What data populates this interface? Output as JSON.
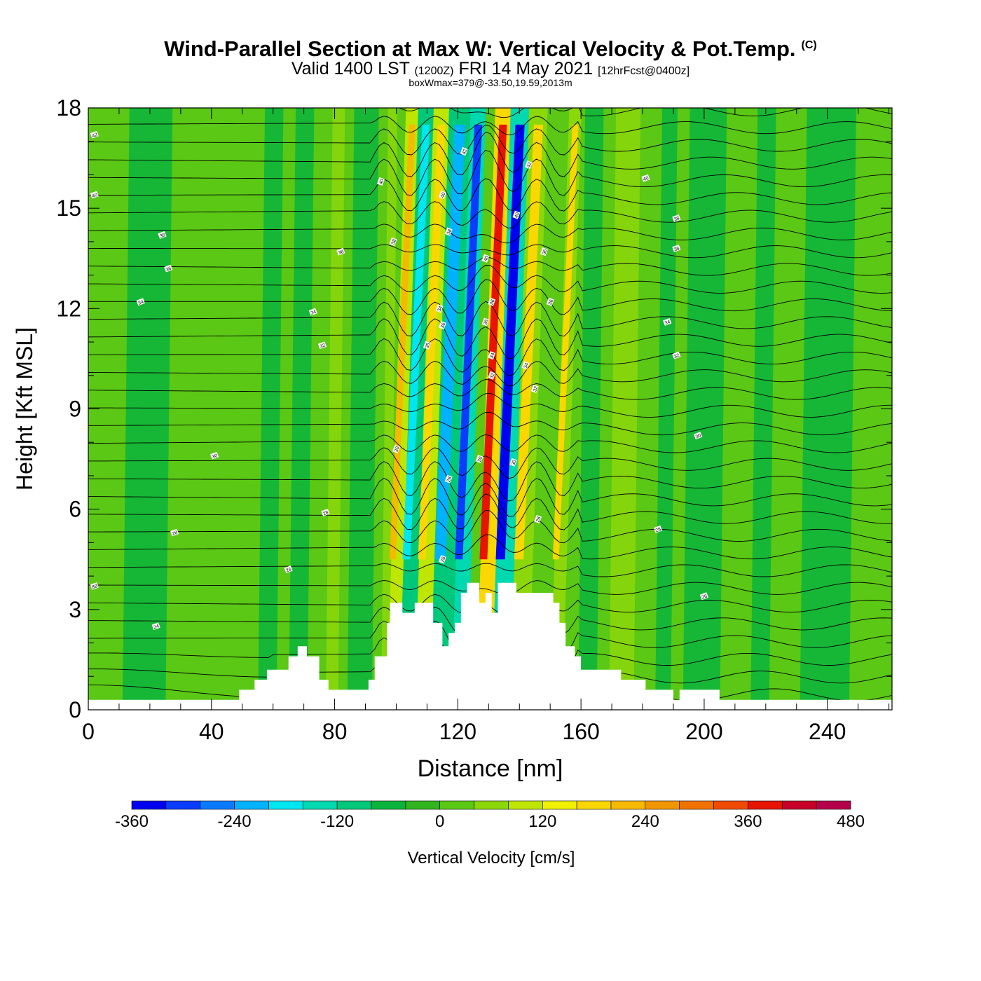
{
  "header": {
    "title": "Wind-Parallel Section at Max W: Vertical Velocity & Pot.Temp.",
    "copyright_mark": "(C)",
    "valid_prefix": "Valid 1400 LST",
    "valid_utc": "(1200Z)",
    "valid_date": "FRI 14 May 2021",
    "forecast_info": "[12hrFcst@0400z]",
    "box_wmax": "boxWmax=379@-33.50,19.59,2013m"
  },
  "chart_data": {
    "type": "heatmap",
    "title": "Wind-Parallel Section at Max W: Vertical Velocity & Pot.Temp.",
    "xlabel": "Distance [nm]",
    "ylabel": "Height [Kft MSL]",
    "xlim": [
      0,
      261
    ],
    "ylim": [
      0,
      18
    ],
    "x_ticks": [
      0,
      40,
      80,
      120,
      160,
      200,
      240
    ],
    "y_ticks": [
      0,
      3,
      6,
      9,
      12,
      15,
      18
    ],
    "colorbar": {
      "label": "Vertical Velocity [cm/s]",
      "ticks": [
        -360,
        -240,
        -120,
        0,
        120,
        240,
        360,
        480
      ],
      "min": -360,
      "max": 480,
      "step": 40,
      "colors": [
        "#0000f0",
        "#0a3cff",
        "#0a7bff",
        "#00b2ff",
        "#00e6f0",
        "#00d8b0",
        "#00c87a",
        "#0ab43c",
        "#32b41e",
        "#5ac814",
        "#8cd70a",
        "#bee600",
        "#f0f000",
        "#fad700",
        "#f5b900",
        "#f09600",
        "#f07300",
        "#f04b00",
        "#e61400",
        "#c80028",
        "#b4004b"
      ]
    },
    "terrain_profile": [
      [
        0,
        0.3
      ],
      [
        49,
        0.3
      ],
      [
        49,
        0.6
      ],
      [
        54,
        0.6
      ],
      [
        54,
        0.9
      ],
      [
        58,
        0.9
      ],
      [
        58,
        1.2
      ],
      [
        65,
        1.2
      ],
      [
        65,
        1.6
      ],
      [
        68,
        1.6
      ],
      [
        68,
        1.9
      ],
      [
        71,
        1.9
      ],
      [
        71,
        1.6
      ],
      [
        75,
        1.6
      ],
      [
        75,
        0.9
      ],
      [
        78,
        0.9
      ],
      [
        78,
        0.6
      ],
      [
        91,
        0.6
      ],
      [
        91,
        0.9
      ],
      [
        93,
        0.9
      ],
      [
        93,
        1.6
      ],
      [
        97,
        1.6
      ],
      [
        97,
        2.6
      ],
      [
        98,
        2.6
      ],
      [
        98,
        3.2
      ],
      [
        102,
        3.2
      ],
      [
        102,
        2.9
      ],
      [
        106,
        2.9
      ],
      [
        106,
        3.2
      ],
      [
        112,
        3.2
      ],
      [
        112,
        2.6
      ],
      [
        115,
        2.6
      ],
      [
        115,
        1.9
      ],
      [
        117,
        1.9
      ],
      [
        117,
        2.3
      ],
      [
        119,
        2.3
      ],
      [
        119,
        2.6
      ],
      [
        121,
        2.6
      ],
      [
        121,
        3.5
      ],
      [
        123,
        3.5
      ],
      [
        123,
        3.8
      ],
      [
        127,
        3.8
      ],
      [
        127,
        3.2
      ],
      [
        129,
        3.2
      ],
      [
        129,
        3.5
      ],
      [
        131,
        3.5
      ],
      [
        131,
        2.9
      ],
      [
        133,
        2.9
      ],
      [
        133,
        3.8
      ],
      [
        139,
        3.8
      ],
      [
        139,
        3.5
      ],
      [
        151,
        3.5
      ],
      [
        151,
        3.2
      ],
      [
        153,
        3.2
      ],
      [
        153,
        2.6
      ],
      [
        155,
        2.6
      ],
      [
        155,
        1.9
      ],
      [
        158,
        1.9
      ],
      [
        158,
        1.6
      ],
      [
        160,
        1.6
      ],
      [
        160,
        1.2
      ],
      [
        173,
        1.2
      ],
      [
        173,
        0.9
      ],
      [
        181,
        0.9
      ],
      [
        181,
        0.6
      ],
      [
        190,
        0.6
      ],
      [
        190,
        0.3
      ],
      [
        192,
        0.3
      ],
      [
        192,
        0.6
      ],
      [
        205,
        0.6
      ],
      [
        205,
        0.3
      ],
      [
        261,
        0.3
      ]
    ],
    "vertical_velocity_bands": [
      {
        "x_start": 100,
        "x_end": 104,
        "w_max": 200
      },
      {
        "x_start": 104,
        "x_end": 109,
        "w_max": -200
      },
      {
        "x_start": 109,
        "x_end": 114,
        "w_max": 180
      },
      {
        "x_start": 114,
        "x_end": 121,
        "w_max": -240
      },
      {
        "x_start": 121,
        "x_end": 126,
        "w_max": -300
      },
      {
        "x_start": 129,
        "x_end": 134,
        "w_max": 379
      },
      {
        "x_start": 134,
        "x_end": 140,
        "w_max": -340
      },
      {
        "x_start": 140,
        "x_end": 146,
        "w_max": 160
      },
      {
        "x_start": 153,
        "x_end": 157,
        "w_max": 160
      }
    ],
    "potential_temperature_contour_labels": [
      {
        "label": "42",
        "x": 2,
        "y": 17.2
      },
      {
        "label": "40",
        "x": 2,
        "y": 15.4
      },
      {
        "label": "38",
        "x": 24,
        "y": 14.2
      },
      {
        "label": "36",
        "x": 26,
        "y": 13.2
      },
      {
        "label": "34",
        "x": 17,
        "y": 12.2
      },
      {
        "label": "30",
        "x": 41,
        "y": 7.6
      },
      {
        "label": "28",
        "x": 28,
        "y": 5.3
      },
      {
        "label": "26",
        "x": 65,
        "y": 4.2
      },
      {
        "label": "24",
        "x": 22,
        "y": 2.5
      },
      {
        "label": "38",
        "x": 82,
        "y": 13.7
      },
      {
        "label": "34",
        "x": 73,
        "y": 11.9
      },
      {
        "label": "32",
        "x": 76,
        "y": 10.9
      },
      {
        "label": "28",
        "x": 77,
        "y": 5.9
      },
      {
        "label": "40",
        "x": 95,
        "y": 15.8
      },
      {
        "label": "38",
        "x": 99,
        "y": 14.0
      },
      {
        "label": "30",
        "x": 100,
        "y": 7.8
      },
      {
        "label": "42",
        "x": 122,
        "y": 16.7
      },
      {
        "label": "40",
        "x": 115,
        "y": 15.4
      },
      {
        "label": "38",
        "x": 117,
        "y": 14.3
      },
      {
        "label": "36",
        "x": 115,
        "y": 11.5
      },
      {
        "label": "34",
        "x": 114,
        "y": 12.0
      },
      {
        "label": "35",
        "x": 110,
        "y": 10.9
      },
      {
        "label": "28",
        "x": 115,
        "y": 4.5
      },
      {
        "label": "28",
        "x": 117,
        "y": 6.9
      },
      {
        "label": "40",
        "x": 129,
        "y": 13.5
      },
      {
        "label": "36",
        "x": 131,
        "y": 12.2
      },
      {
        "label": "35",
        "x": 129,
        "y": 11.6
      },
      {
        "label": "34",
        "x": 131,
        "y": 10.6
      },
      {
        "label": "32",
        "x": 131,
        "y": 10.0
      },
      {
        "label": "30",
        "x": 127,
        "y": 7.5
      },
      {
        "label": "30",
        "x": 138,
        "y": 7.4
      },
      {
        "label": "42",
        "x": 143,
        "y": 16.3
      },
      {
        "label": "40",
        "x": 139,
        "y": 14.8
      },
      {
        "label": "36",
        "x": 148,
        "y": 13.7
      },
      {
        "label": "36",
        "x": 150,
        "y": 12.2
      },
      {
        "label": "34",
        "x": 142,
        "y": 10.3
      },
      {
        "label": "32",
        "x": 145,
        "y": 9.6
      },
      {
        "label": "28",
        "x": 146,
        "y": 5.7
      },
      {
        "label": "40",
        "x": 181,
        "y": 15.9
      },
      {
        "label": "38",
        "x": 191,
        "y": 14.7
      },
      {
        "label": "36",
        "x": 191,
        "y": 13.8
      },
      {
        "label": "34",
        "x": 188,
        "y": 11.6
      },
      {
        "label": "32",
        "x": 191,
        "y": 10.6
      },
      {
        "label": "30",
        "x": 198,
        "y": 8.2
      },
      {
        "label": "28",
        "x": 185,
        "y": 5.4
      },
      {
        "label": "26",
        "x": 200,
        "y": 3.4
      },
      {
        "label": "88",
        "x": 2,
        "y": 3.7
      }
    ]
  }
}
